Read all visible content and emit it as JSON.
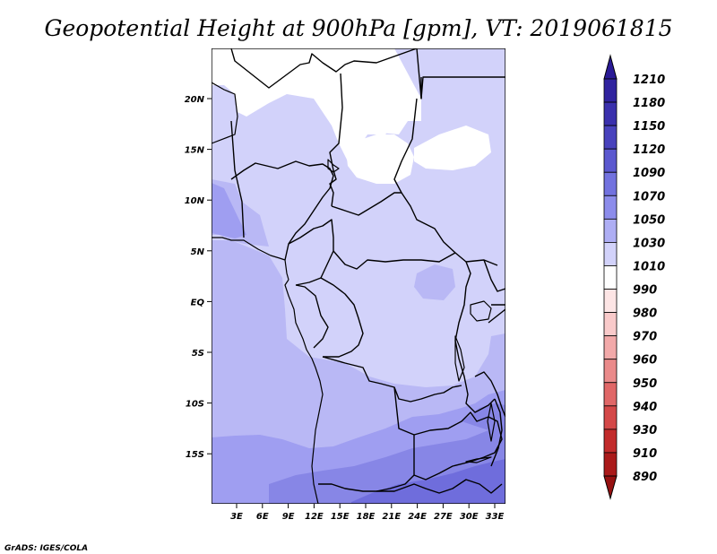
{
  "map": {
    "title": "Geopotential Height at 900hPa [gpm], VT: 2019061815",
    "lat_labels": [
      "20N",
      "15N",
      "10N",
      "5N",
      "EQ",
      "5S",
      "10S",
      "15S"
    ],
    "lon_labels": [
      "3E",
      "6E",
      "9E",
      "12E",
      "15E",
      "18E",
      "21E",
      "24E",
      "27E",
      "30E",
      "33E"
    ],
    "extent": {
      "lon": [
        0,
        34
      ],
      "lat": [
        -20,
        25
      ]
    },
    "credit": "GrADS: IGES/COLA"
  },
  "colorbar": {
    "levels": [
      "1210",
      "1180",
      "1150",
      "1120",
      "1090",
      "1070",
      "1050",
      "1030",
      "1010",
      "990",
      "980",
      "970",
      "960",
      "950",
      "940",
      "930",
      "910",
      "890"
    ],
    "colors": [
      "#2a1a96",
      "#30239f",
      "#3a30ad",
      "#4842bd",
      "#5b58cf",
      "#7272df",
      "#8c8ceb",
      "#aeaef4",
      "#d2d2fa",
      "#ffffff",
      "#fde5e5",
      "#f9caca",
      "#f2a9a9",
      "#ea8a8a",
      "#e06767",
      "#d44848",
      "#c22b2b",
      "#aa1a1a",
      "#961111"
    ]
  }
}
